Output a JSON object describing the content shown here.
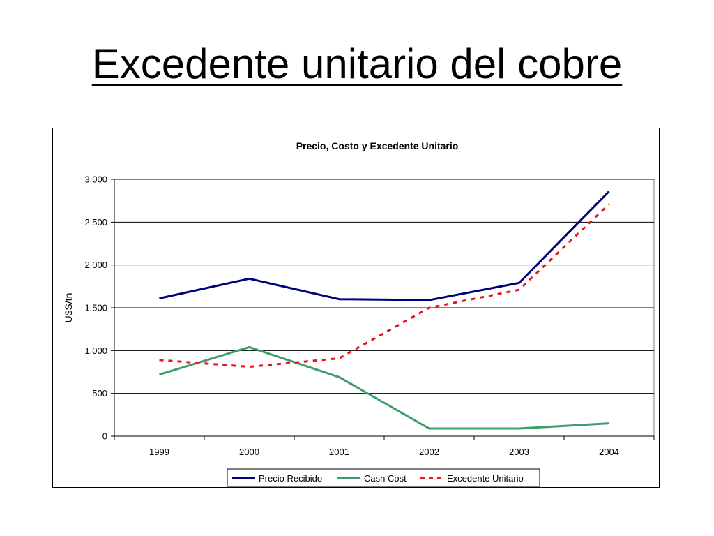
{
  "slide": {
    "title": "Excedente unitario del cobre"
  },
  "chart_data": {
    "type": "line",
    "title": "Precio, Costo y Excedente Unitario",
    "xlabel": "",
    "ylabel": "U$S/tn",
    "categories": [
      "1999",
      "2000",
      "2001",
      "2002",
      "2003",
      "2004"
    ],
    "ylim": [
      0,
      3000
    ],
    "yticks": [
      0,
      500,
      1000,
      1500,
      2000,
      2500,
      3000
    ],
    "ytick_labels": [
      "0",
      "500",
      "1.000",
      "1.500",
      "2.000",
      "2.500",
      "3.000"
    ],
    "grid": true,
    "legend_position": "bottom",
    "series": [
      {
        "name": "Precio Recibido",
        "values": [
          1610,
          1840,
          1600,
          1590,
          1790,
          2860
        ],
        "color": "#000080",
        "style": "solid"
      },
      {
        "name": "Cash Cost",
        "values": [
          720,
          1040,
          690,
          90,
          90,
          150
        ],
        "color": "#3C9E6A",
        "style": "solid"
      },
      {
        "name": "Excedente Unitario",
        "values": [
          890,
          810,
          910,
          1500,
          1710,
          2710
        ],
        "color": "#E8121C",
        "style": "dashed"
      }
    ]
  }
}
